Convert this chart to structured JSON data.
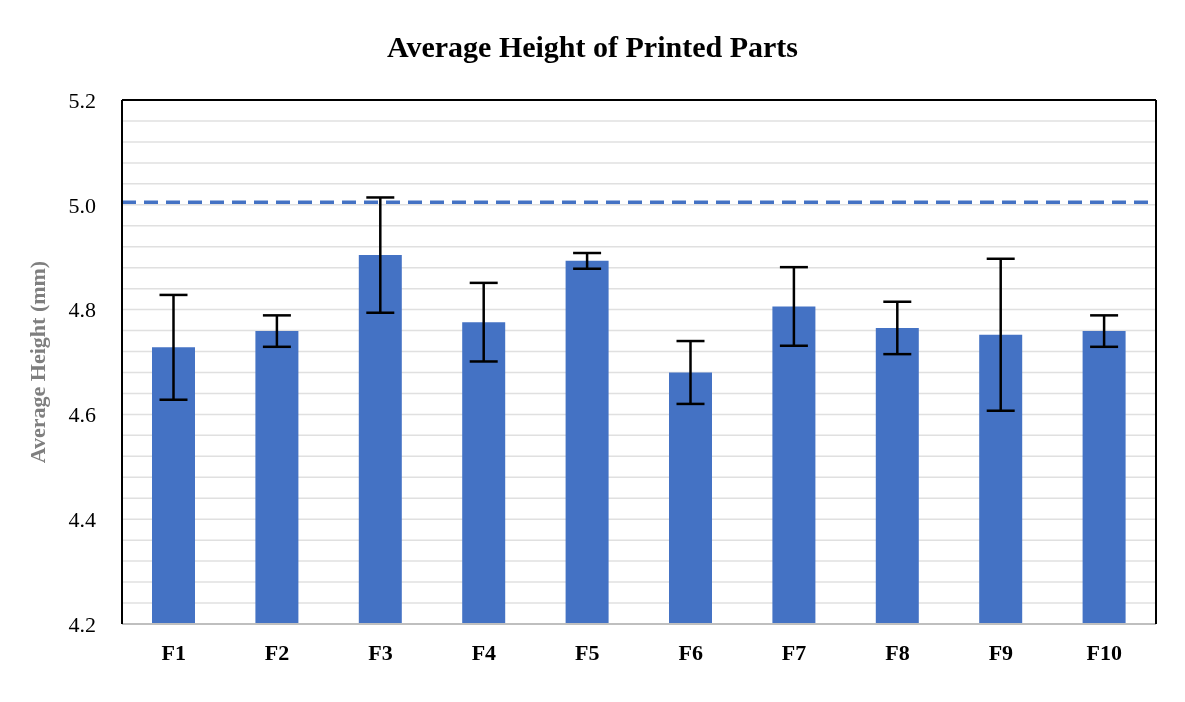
{
  "chart_data": {
    "type": "bar",
    "title": "Average Height of Printed Parts",
    "ylabel": "Average Height (mm)",
    "categories": [
      "F1",
      "F2",
      "F3",
      "F4",
      "F5",
      "F6",
      "F7",
      "F8",
      "F9",
      "F10"
    ],
    "values": [
      4.728,
      4.759,
      4.904,
      4.776,
      4.893,
      4.68,
      4.806,
      4.765,
      4.752,
      4.759
    ],
    "errors": [
      0.1,
      0.03,
      0.11,
      0.075,
      0.015,
      0.06,
      0.075,
      0.05,
      0.145,
      0.03
    ],
    "color": "#4472c4",
    "ylim": [
      4.2,
      5.2
    ],
    "yticks": [
      4.2,
      {
        "value": 4.24,
        "label": null
      },
      {
        "value": 4.28,
        "label": null
      },
      {
        "value": 4.32,
        "label": null
      },
      {
        "value": 4.36,
        "label": null
      },
      4.4,
      {
        "value": 4.44,
        "label": null
      },
      {
        "value": 4.48,
        "label": null
      },
      {
        "value": 4.52,
        "label": null
      },
      {
        "value": 4.56,
        "label": null
      },
      4.6,
      {
        "value": 4.64,
        "label": null
      },
      {
        "value": 4.68,
        "label": null
      },
      {
        "value": 4.72,
        "label": null
      },
      {
        "value": 4.76,
        "label": null
      },
      4.8,
      {
        "value": 4.84,
        "label": null
      },
      {
        "value": 4.88,
        "label": null
      },
      {
        "value": 4.92,
        "label": null
      },
      {
        "value": 4.96,
        "label": null
      },
      {
        "value": 5,
        "label": "5.0"
      },
      {
        "value": 5.04,
        "label": null
      },
      {
        "value": 5.08,
        "label": null
      },
      {
        "value": 5.12,
        "label": null
      },
      {
        "value": 5.16,
        "label": null
      },
      5.2
    ],
    "ref_lines": [
      {
        "axis": "y",
        "value": 5.005,
        "color": "#4472c4",
        "line_style": "dashed"
      }
    ],
    "grid": "y",
    "legend": false
  }
}
